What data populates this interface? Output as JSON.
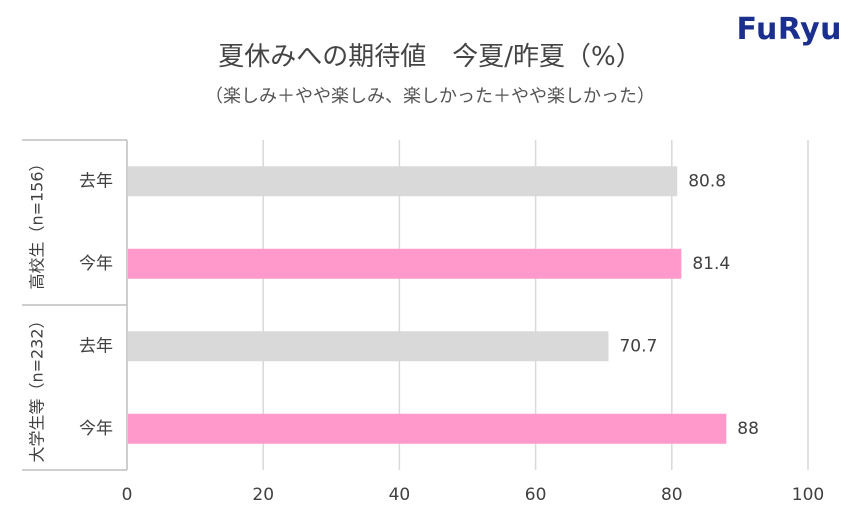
{
  "logo": "FuRyu",
  "chart_data": {
    "type": "bar",
    "orientation": "horizontal",
    "title": "夏休みへの期待値　今夏/昨夏（%）",
    "subtitle": "（楽しみ＋やや楽しみ、楽しかった＋やや楽しかった）",
    "groups": [
      {
        "label": "高校生（n=156）",
        "bars": [
          {
            "label": "去年",
            "value": 80.8,
            "value_label": "80.8",
            "color": "#d9d9d9"
          },
          {
            "label": "今年",
            "value": 81.4,
            "value_label": "81.4",
            "color": "#ff99cc"
          }
        ]
      },
      {
        "label": "大学生等（n=232）",
        "bars": [
          {
            "label": "去年",
            "value": 70.7,
            "value_label": "70.7",
            "color": "#d9d9d9"
          },
          {
            "label": "今年",
            "value": 88,
            "value_label": "88",
            "color": "#ff99cc"
          }
        ]
      }
    ],
    "xlim": [
      0,
      100
    ],
    "xticks": [
      "0",
      "20",
      "40",
      "60",
      "80",
      "100"
    ],
    "grid": true
  }
}
